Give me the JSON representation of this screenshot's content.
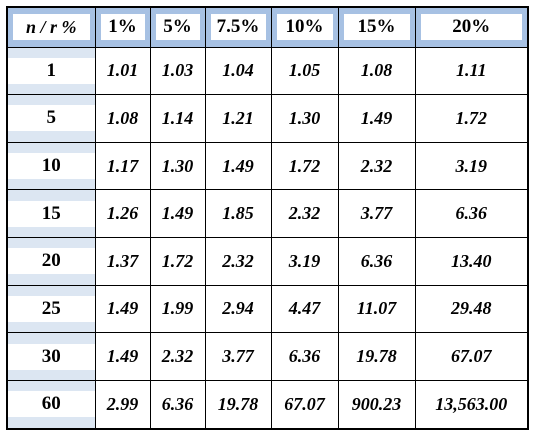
{
  "table": {
    "corner_label": "n / r %",
    "columns": [
      "1%",
      "5%",
      "7.5%",
      "10%",
      "15%",
      "20%"
    ],
    "rows": [
      {
        "n": "1",
        "values": [
          "1.01",
          "1.03",
          "1.04",
          "1.05",
          "1.08",
          "1.11"
        ]
      },
      {
        "n": "5",
        "values": [
          "1.08",
          "1.14",
          "1.21",
          "1.30",
          "1.49",
          "1.72"
        ]
      },
      {
        "n": "10",
        "values": [
          "1.17",
          "1.30",
          "1.49",
          "1.72",
          "2.32",
          "3.19"
        ]
      },
      {
        "n": "15",
        "values": [
          "1.26",
          "1.49",
          "1.85",
          "2.32",
          "3.77",
          "6.36"
        ]
      },
      {
        "n": "20",
        "values": [
          "1.37",
          "1.72",
          "2.32",
          "3.19",
          "6.36",
          "13.40"
        ]
      },
      {
        "n": "25",
        "values": [
          "1.49",
          "1.99",
          "2.94",
          "4.47",
          "11.07",
          "29.48"
        ]
      },
      {
        "n": "30",
        "values": [
          "1.49",
          "2.32",
          "3.77",
          "6.36",
          "19.78",
          "67.07"
        ]
      },
      {
        "n": "60",
        "values": [
          "2.99",
          "6.36",
          "19.78",
          "67.07",
          "900.23",
          "13,563.00"
        ]
      }
    ]
  },
  "colors": {
    "header_bg": "#a7c1e3",
    "row_header_bg": "#dce6f2",
    "cell_bg": "#ffffff",
    "border": "#000000"
  }
}
